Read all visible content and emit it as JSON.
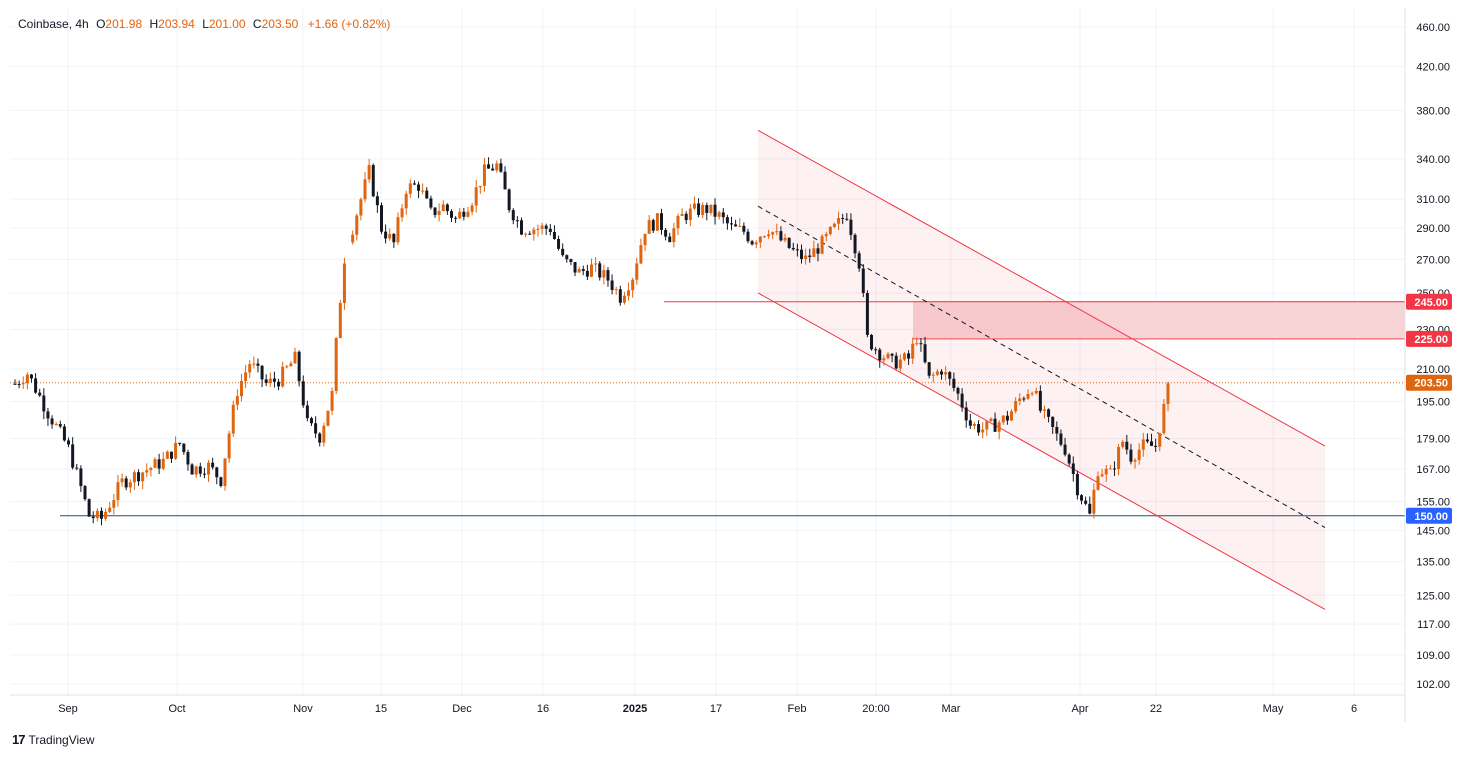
{
  "legend": {
    "symbol": "Coinbase",
    "interval": "4h",
    "open_label": "O",
    "open": "201.98",
    "high_label": "H",
    "high": "203.94",
    "low_label": "L",
    "low": "201.00",
    "close_label": "C",
    "close": "203.50",
    "change": "+1.66 (+0.82%)"
  },
  "footer": {
    "brand": "TradingView",
    "logo_glyph": "17"
  },
  "colors": {
    "up": "#e0650f",
    "down": "#131722",
    "channel": "#f23645",
    "support": "#2962ff",
    "support_line": "#1f4e79",
    "price": "#e0650f",
    "zone_fill": "#f7c5c9"
  },
  "chart_data": {
    "type": "candlestick",
    "title": "Coinbase, 4h",
    "y_scale": "log",
    "ylim": [
      98,
      480
    ],
    "y_ticks": [
      "460.00",
      "420.00",
      "380.00",
      "340.00",
      "310.00",
      "290.00",
      "270.00",
      "250.00",
      "230.00",
      "210.00",
      "195.00",
      "179.00",
      "167.00",
      "155.00",
      "145.00",
      "135.00",
      "125.00",
      "117.00",
      "109.00",
      "102.00"
    ],
    "x_ticks": [
      {
        "label": "Sep",
        "bold": false
      },
      {
        "label": "Oct",
        "bold": false
      },
      {
        "label": "Nov",
        "bold": false
      },
      {
        "label": "15",
        "bold": false
      },
      {
        "label": "Dec",
        "bold": false
      },
      {
        "label": "16",
        "bold": false
      },
      {
        "label": "2025",
        "bold": true
      },
      {
        "label": "17",
        "bold": false
      },
      {
        "label": "Feb",
        "bold": false
      },
      {
        "label": "20:00",
        "bold": false
      },
      {
        "label": "Mar",
        "bold": false
      },
      {
        "label": "Apr",
        "bold": false
      },
      {
        "label": "22",
        "bold": false
      },
      {
        "label": "May",
        "bold": false
      },
      {
        "label": "6",
        "bold": false
      }
    ],
    "price_line": {
      "value": 203.5,
      "label": "203.50"
    },
    "levels": [
      {
        "value": 245,
        "label": "245.00"
      },
      {
        "value": 225,
        "label": "225.00"
      },
      {
        "value": 150,
        "label": "150.00"
      }
    ],
    "channel": {
      "upper_start": 363,
      "upper_end": 176,
      "lower_start": 250,
      "lower_end": 121,
      "mid_start": 305,
      "mid_end": 146
    },
    "path": [
      [
        0,
        203
      ],
      [
        3,
        208
      ],
      [
        8,
        190
      ],
      [
        13,
        175
      ],
      [
        18,
        150
      ],
      [
        21,
        149
      ],
      [
        26,
        162
      ],
      [
        31,
        166
      ],
      [
        36,
        170
      ],
      [
        40,
        177
      ],
      [
        43,
        167
      ],
      [
        47,
        168
      ],
      [
        50,
        163
      ],
      [
        54,
        200
      ],
      [
        57,
        213
      ],
      [
        61,
        203
      ],
      [
        64,
        205
      ],
      [
        68,
        215
      ],
      [
        71,
        185
      ],
      [
        74,
        180
      ],
      [
        77,
        198
      ],
      [
        80,
        271
      ],
      [
        84,
        310
      ],
      [
        86,
        330
      ],
      [
        89,
        290
      ],
      [
        92,
        280
      ],
      [
        95,
        318
      ],
      [
        98,
        320
      ],
      [
        101,
        300
      ],
      [
        104,
        305
      ],
      [
        107,
        296
      ],
      [
        111,
        310
      ],
      [
        114,
        330
      ],
      [
        117,
        335
      ],
      [
        120,
        305
      ],
      [
        123,
        290
      ],
      [
        126,
        290
      ],
      [
        130,
        290
      ],
      [
        133,
        270
      ],
      [
        137,
        262
      ],
      [
        140,
        265
      ],
      [
        144,
        258
      ],
      [
        147,
        248
      ],
      [
        150,
        260
      ],
      [
        153,
        290
      ],
      [
        156,
        295
      ],
      [
        159,
        285
      ],
      [
        162,
        298
      ],
      [
        165,
        302
      ],
      [
        168,
        303
      ],
      [
        171,
        298
      ],
      [
        174,
        290
      ],
      [
        177,
        288
      ],
      [
        179,
        282
      ],
      [
        183,
        290
      ],
      [
        186,
        282
      ],
      [
        189,
        275
      ],
      [
        192,
        270
      ],
      [
        196,
        280
      ],
      [
        199,
        290
      ],
      [
        202,
        300
      ],
      [
        205,
        268
      ],
      [
        207,
        225
      ],
      [
        210,
        218
      ],
      [
        213,
        213
      ],
      [
        217,
        215
      ],
      [
        219,
        226
      ],
      [
        222,
        205
      ],
      [
        225,
        210
      ],
      [
        229,
        198
      ],
      [
        232,
        185
      ],
      [
        235,
        183
      ],
      [
        238,
        185
      ],
      [
        241,
        188
      ],
      [
        244,
        196
      ],
      [
        247,
        202
      ],
      [
        249,
        191
      ],
      [
        253,
        180
      ],
      [
        255,
        175
      ],
      [
        258,
        160
      ],
      [
        261,
        150
      ],
      [
        263,
        167
      ],
      [
        266,
        165
      ],
      [
        269,
        178
      ],
      [
        271,
        172
      ],
      [
        274,
        176
      ],
      [
        277,
        176
      ],
      [
        280,
        200
      ]
    ]
  }
}
